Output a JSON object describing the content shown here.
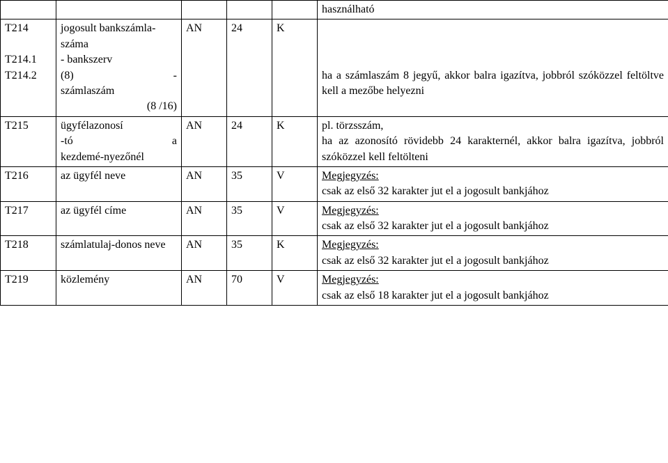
{
  "row0": {
    "c6": "használható"
  },
  "row1": {
    "c1a": "T214",
    "c1b": "T214.1",
    "c1c": "T214.2",
    "c2": "jogosult bankszámla-száma",
    "c2b": "- bankszerv",
    "c2c_left": "(8)",
    "c2c_dash": "-",
    "c2d": "számlaszám",
    "c2e": "(8 /16)",
    "c3": "AN",
    "c4": "24",
    "c5": "K",
    "c6": "ha a számlaszám 8 jegyű, akkor balra igazítva, jobbról szóközzel feltöltve kell a mezőbe helyezni"
  },
  "row2": {
    "c1": "T215",
    "c2": "ügyfélazonosí-tó a kezdemé-nyezőnél",
    "c2_l1_left": "ügyfélazonosí",
    "c2_l2_left": "-tó",
    "c2_l2_right": "a",
    "c2_l3": "kezdemé-nyezőnél",
    "c3": "AN",
    "c4": "24",
    "c5": "K",
    "c6a": "pl. törzsszám,",
    "c6b": "ha az azonosító rövidebb 24 karakternél, akkor balra igazítva, jobbról szóközzel kell feltölteni"
  },
  "row3": {
    "c1": "T216",
    "c2": "az ügyfél neve",
    "c3": "AN",
    "c4": "35",
    "c5": "V",
    "c6a": "Megjegyzés:",
    "c6b": "csak az első 32 karakter jut el a jogosult bankjához"
  },
  "row4": {
    "c1": "T217",
    "c2": "az ügyfél címe",
    "c3": "AN",
    "c4": "35",
    "c5": "V",
    "c6a": "Megjegyzés:",
    "c6b": "csak az első 32 karakter jut el a jogosult bankjához"
  },
  "row5": {
    "c1": "T218",
    "c2": "számlatulaj-donos  neve",
    "c3": "AN",
    "c4": "35",
    "c5": "K",
    "c6a": "Megjegyzés:",
    "c6b": "csak az első 32 karakter jut el a jogosult bankjához"
  },
  "row6": {
    "c1": "T219",
    "c2": "közlemény",
    "c3": "AN",
    "c4": "70",
    "c5": "V",
    "c6a": "Megjegyzés:",
    "c6b": "csak az első 18 karakter jut el a jogosult bankjához"
  }
}
